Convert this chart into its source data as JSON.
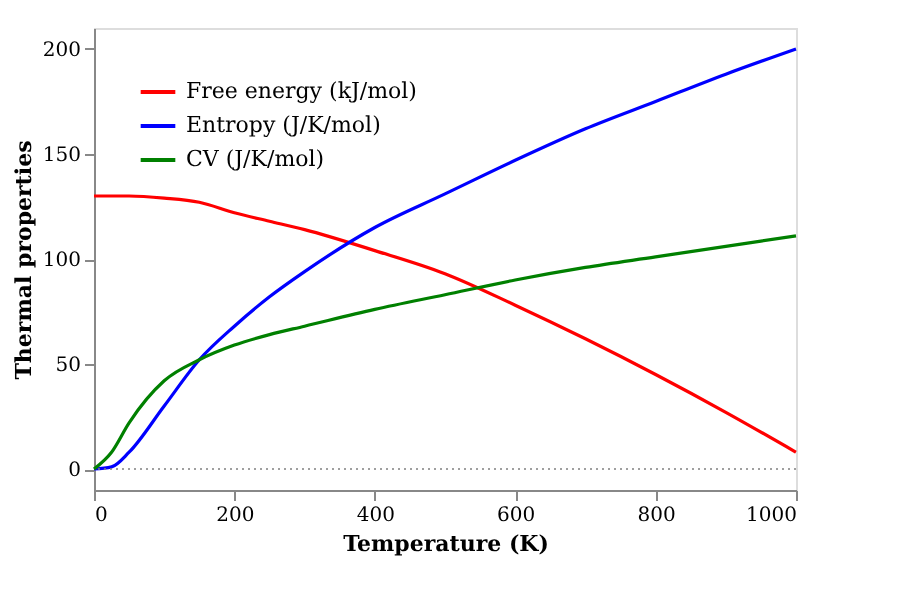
{
  "chart_data": {
    "type": "line",
    "xlabel": "Temperature (K)",
    "ylabel": "Thermal properties",
    "x": [
      0,
      25,
      50,
      100,
      150,
      200,
      250,
      300,
      400,
      500,
      600,
      700,
      800,
      900,
      1000
    ],
    "series": [
      {
        "name": "Free energy (kJ/mol)",
        "color": "#ff0000",
        "values": [
          130,
          130,
          130,
          129,
          127,
          122,
          118,
          114,
          104,
          93,
          78,
          62,
          45,
          27,
          8
        ]
      },
      {
        "name": "Entropy (J/K/mol)",
        "color": "#0000ff",
        "values": [
          0,
          1,
          8,
          30,
          52,
          68,
          82,
          94,
          115,
          131,
          147,
          162,
          175,
          188,
          200
        ]
      },
      {
        "name": "CV (J/K/mol)",
        "color": "#008000",
        "values": [
          0,
          8,
          22,
          42,
          52,
          59,
          64,
          68,
          76,
          83,
          90,
          96,
          101,
          106,
          111
        ]
      }
    ],
    "xlim": [
      0,
      1000
    ],
    "xticks": [
      0,
      200,
      400,
      600,
      800,
      1000
    ],
    "ylim": [
      -10,
      210
    ],
    "yticks": [
      0,
      50,
      100,
      150,
      200
    ],
    "ref_lines": [
      {
        "axis": "y",
        "value": 0,
        "color": "#808080",
        "line_style": "dotted"
      }
    ],
    "grid": false,
    "legend": "top left",
    "marker": "none",
    "line_style": "solid"
  }
}
